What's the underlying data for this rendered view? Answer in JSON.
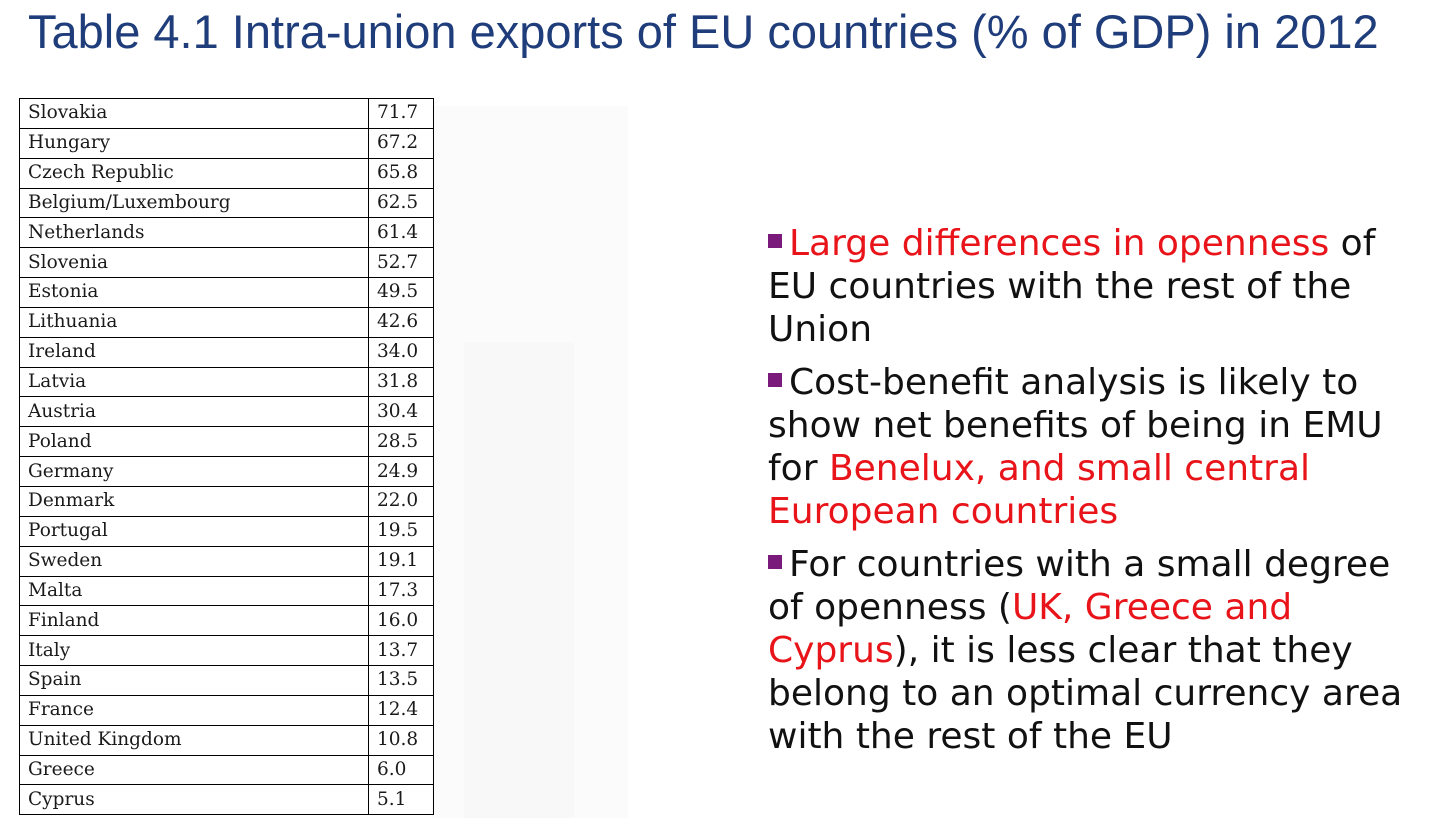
{
  "title": "Table 4.1 Intra-union exports of EU countries (% of GDP) in 2012",
  "table": {
    "rows": [
      {
        "country": "Slovakia",
        "value": "71.7"
      },
      {
        "country": "Hungary",
        "value": "67.2"
      },
      {
        "country": "Czech Republic",
        "value": "65.8"
      },
      {
        "country": "Belgium/Luxembourg",
        "value": "62.5"
      },
      {
        "country": "Netherlands",
        "value": "61.4"
      },
      {
        "country": "Slovenia",
        "value": "52.7"
      },
      {
        "country": "Estonia",
        "value": "49.5"
      },
      {
        "country": "Lithuania",
        "value": "42.6"
      },
      {
        "country": "Ireland",
        "value": "34.0"
      },
      {
        "country": "Latvia",
        "value": "31.8"
      },
      {
        "country": "Austria",
        "value": "30.4"
      },
      {
        "country": "Poland",
        "value": "28.5"
      },
      {
        "country": "Germany",
        "value": "24.9"
      },
      {
        "country": "Denmark",
        "value": "22.0"
      },
      {
        "country": "Portugal",
        "value": "19.5"
      },
      {
        "country": "Sweden",
        "value": "19.1"
      },
      {
        "country": "Malta",
        "value": "17.3"
      },
      {
        "country": "Finland",
        "value": "16.0"
      },
      {
        "country": "Italy",
        "value": "13.7"
      },
      {
        "country": "Spain",
        "value": "13.5"
      },
      {
        "country": "France",
        "value": "12.4"
      },
      {
        "country": "United Kingdom",
        "value": "10.8"
      },
      {
        "country": "Greece",
        "value": "6.0"
      },
      {
        "country": "Cyprus",
        "value": "5.1"
      }
    ]
  },
  "bullets": [
    {
      "marker_icon": "square-bullet-icon",
      "segments": [
        {
          "text": "Large differences in openness",
          "highlight": true
        },
        {
          "text": " of EU countries with the rest of the Union",
          "highlight": false
        }
      ]
    },
    {
      "marker_icon": "square-bullet-icon",
      "segments": [
        {
          "text": "Cost-benefit analysis is likely to show net benefits of being in EMU for ",
          "highlight": false
        },
        {
          "text": "Benelux, and small central European countries",
          "highlight": true
        }
      ]
    },
    {
      "marker_icon": "square-bullet-icon",
      "segments": [
        {
          "text": "For countries with a small degree of openness (",
          "highlight": false
        },
        {
          "text": "UK, Greece and Cyprus",
          "highlight": true
        },
        {
          "text": "), it is less clear that they belong to an optimal currency area with the rest of the EU",
          "highlight": false
        }
      ]
    }
  ],
  "colors": {
    "title": "#1f3d7a",
    "highlight": "#e8141a",
    "bullet_marker": "#7a1a7a"
  }
}
